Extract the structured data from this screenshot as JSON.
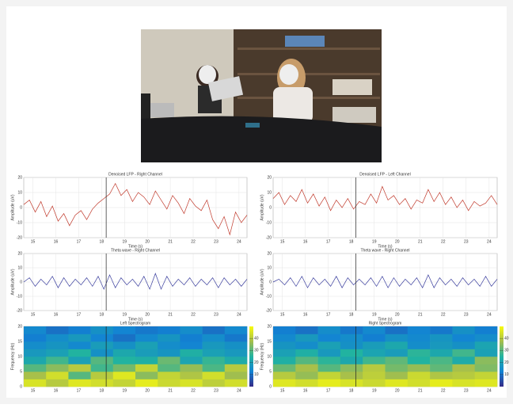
{
  "chart_data": [
    {
      "type": "line",
      "title": "Denoised LFP - Right Channel",
      "xlabel": "Time (s)",
      "ylabel": "Amplitude (uV)",
      "color": "#c0392b",
      "x": [
        14.6,
        14.85,
        15.1,
        15.35,
        15.6,
        15.85,
        16.1,
        16.35,
        16.6,
        16.85,
        17.1,
        17.35,
        17.6,
        17.85,
        18.1,
        18.35,
        18.6,
        18.85,
        19.1,
        19.35,
        19.6,
        19.85,
        20.1,
        20.35,
        20.6,
        20.85,
        21.1,
        21.35,
        21.6,
        21.85,
        22.1,
        22.35,
        22.6,
        22.85,
        23.1,
        23.35,
        23.6,
        23.85,
        24.1,
        24.35
      ],
      "series": [
        {
          "values": [
            2,
            5,
            -3,
            4,
            -6,
            1,
            -9,
            -4,
            -12,
            -5,
            -2,
            -8,
            -1,
            3,
            6,
            9,
            16,
            8,
            12,
            4,
            10,
            7,
            2,
            11,
            5,
            -1,
            8,
            3,
            -4,
            6,
            1,
            -2,
            5,
            -8,
            -14,
            -6,
            -18,
            -3,
            -10,
            -5
          ]
        }
      ],
      "marker_x": 18.2,
      "xlim": [
        14.6,
        24.35
      ],
      "xticks": [
        15,
        16,
        17,
        18,
        19,
        20,
        21,
        22,
        23,
        24
      ],
      "ylim": [
        -20,
        20
      ],
      "yticks": [
        -20,
        -10,
        0,
        10,
        20
      ],
      "grid": true
    },
    {
      "type": "line",
      "title": "Denoised LFP - Left Channel",
      "xlabel": "Time (s)",
      "ylabel": "Amplitude (uV)",
      "color": "#c0392b",
      "x": [
        14.6,
        14.85,
        15.1,
        15.35,
        15.6,
        15.85,
        16.1,
        16.35,
        16.6,
        16.85,
        17.1,
        17.35,
        17.6,
        17.85,
        18.1,
        18.35,
        18.6,
        18.85,
        19.1,
        19.35,
        19.6,
        19.85,
        20.1,
        20.35,
        20.6,
        20.85,
        21.1,
        21.35,
        21.6,
        21.85,
        22.1,
        22.35,
        22.6,
        22.85,
        23.1,
        23.35,
        23.6,
        23.85,
        24.1,
        24.35
      ],
      "series": [
        {
          "values": [
            6,
            10,
            2,
            8,
            4,
            12,
            3,
            9,
            1,
            7,
            -2,
            5,
            0,
            6,
            -1,
            4,
            2,
            9,
            3,
            14,
            5,
            8,
            2,
            6,
            -1,
            5,
            3,
            12,
            4,
            10,
            2,
            7,
            0,
            5,
            -2,
            4,
            1,
            3,
            8,
            2
          ]
        }
      ],
      "marker_x": 18.2,
      "xlim": [
        14.6,
        24.35
      ],
      "xticks": [
        15,
        16,
        17,
        18,
        19,
        20,
        21,
        22,
        23,
        24
      ],
      "ylim": [
        -20,
        20
      ],
      "yticks": [
        -20,
        -10,
        0,
        10,
        20
      ],
      "grid": true
    },
    {
      "type": "line",
      "title": "Theta wave - Right Channel",
      "xlabel": "Time (s)",
      "ylabel": "Amplitude (uV)",
      "color": "#3b3f9e",
      "x": [
        14.6,
        14.85,
        15.1,
        15.35,
        15.6,
        15.85,
        16.1,
        16.35,
        16.6,
        16.85,
        17.1,
        17.35,
        17.6,
        17.85,
        18.1,
        18.35,
        18.6,
        18.85,
        19.1,
        19.35,
        19.6,
        19.85,
        20.1,
        20.35,
        20.6,
        20.85,
        21.1,
        21.35,
        21.6,
        21.85,
        22.1,
        22.35,
        22.6,
        22.85,
        23.1,
        23.35,
        23.6,
        23.85,
        24.1,
        24.35
      ],
      "series": [
        {
          "values": [
            0,
            3,
            -3,
            2,
            -2,
            4,
            -4,
            3,
            -3,
            2,
            -2,
            3,
            -3,
            4,
            -5,
            5,
            -4,
            3,
            -2,
            2,
            -3,
            4,
            -5,
            6,
            -5,
            4,
            -3,
            2,
            -2,
            3,
            -3,
            2,
            -2,
            3,
            -4,
            3,
            -2,
            2,
            -3,
            2
          ]
        }
      ],
      "marker_x": 18.2,
      "xlim": [
        14.6,
        24.35
      ],
      "xticks": [
        15,
        16,
        17,
        18,
        19,
        20,
        21,
        22,
        23,
        24
      ],
      "ylim": [
        -20,
        20
      ],
      "yticks": [
        -20,
        -10,
        0,
        10,
        20
      ],
      "grid": true
    },
    {
      "type": "line",
      "title": "Theta wave - Right Channel",
      "xlabel": "Time (s)",
      "ylabel": "Amplitude (uV)",
      "color": "#3b3f9e",
      "x": [
        14.6,
        14.85,
        15.1,
        15.35,
        15.6,
        15.85,
        16.1,
        16.35,
        16.6,
        16.85,
        17.1,
        17.35,
        17.6,
        17.85,
        18.1,
        18.35,
        18.6,
        18.85,
        19.1,
        19.35,
        19.6,
        19.85,
        20.1,
        20.35,
        20.6,
        20.85,
        21.1,
        21.35,
        21.6,
        21.85,
        22.1,
        22.35,
        22.6,
        22.85,
        23.1,
        23.35,
        23.6,
        23.85,
        24.1,
        24.35
      ],
      "series": [
        {
          "values": [
            0,
            2,
            -2,
            3,
            -3,
            4,
            -4,
            3,
            -2,
            2,
            -3,
            4,
            -4,
            3,
            -2,
            2,
            -2,
            3,
            -3,
            4,
            -4,
            3,
            -3,
            2,
            -2,
            3,
            -4,
            5,
            -4,
            3,
            -2,
            2,
            -3,
            3,
            -2,
            2,
            -3,
            4,
            -3,
            2
          ]
        }
      ],
      "marker_x": 18.2,
      "xlim": [
        14.6,
        24.35
      ],
      "xticks": [
        15,
        16,
        17,
        18,
        19,
        20,
        21,
        22,
        23,
        24
      ],
      "ylim": [
        -20,
        20
      ],
      "yticks": [
        -20,
        -10,
        0,
        10,
        20
      ],
      "grid": true
    },
    {
      "type": "heatmap",
      "title": "Left Spectrogram",
      "ylabel": "Frequency (Hz)",
      "z": [
        [
          45,
          40,
          46,
          44,
          42,
          47,
          43,
          45,
          41,
          44
        ],
        [
          38,
          44,
          30,
          40,
          46,
          35,
          42,
          39,
          44,
          37
        ],
        [
          30,
          35,
          40,
          28,
          33,
          42,
          30,
          36,
          29,
          40
        ],
        [
          22,
          28,
          20,
          30,
          25,
          24,
          32,
          21,
          27,
          23
        ],
        [
          18,
          20,
          25,
          16,
          22,
          19,
          17,
          24,
          20,
          18
        ],
        [
          15,
          17,
          14,
          19,
          16,
          20,
          15,
          13,
          18,
          16
        ],
        [
          12,
          15,
          18,
          13,
          10,
          14,
          17,
          12,
          15,
          11
        ],
        [
          14,
          10,
          12,
          16,
          13,
          11,
          12,
          15,
          10,
          14
        ]
      ],
      "clim": [
        0,
        50
      ],
      "colorbar_ticks": [
        10,
        20,
        30,
        40
      ],
      "marker_x": 18.2,
      "xlim": [
        14.6,
        24.35
      ],
      "xticks": [
        15,
        16,
        17,
        18,
        19,
        20,
        21,
        22,
        23,
        24
      ],
      "ylim": [
        0,
        20
      ],
      "yticks": [
        0,
        5,
        10,
        15,
        20
      ]
    },
    {
      "type": "heatmap",
      "title": "Right Spectrogram",
      "ylabel": "Frequency (Hz)",
      "z": [
        [
          46,
          44,
          47,
          45,
          43,
          46,
          44,
          47,
          45,
          46
        ],
        [
          40,
          36,
          42,
          38,
          41,
          37,
          43,
          39,
          40,
          42
        ],
        [
          32,
          38,
          30,
          35,
          40,
          33,
          36,
          31,
          38,
          34
        ],
        [
          24,
          30,
          26,
          22,
          28,
          31,
          25,
          29,
          23,
          35
        ],
        [
          20,
          24,
          18,
          25,
          21,
          19,
          26,
          22,
          28,
          20
        ],
        [
          17,
          15,
          20,
          16,
          19,
          22,
          15,
          18,
          16,
          21
        ],
        [
          14,
          18,
          13,
          15,
          12,
          16,
          14,
          17,
          13,
          15
        ],
        [
          12,
          10,
          15,
          11,
          14,
          10,
          13,
          11,
          16,
          12
        ]
      ],
      "clim": [
        0,
        50
      ],
      "colorbar_ticks": [
        10,
        20,
        30,
        40
      ],
      "marker_x": 18.2,
      "xlim": [
        14.6,
        24.35
      ],
      "xticks": [
        15,
        16,
        17,
        18,
        19,
        20,
        21,
        22,
        23,
        24
      ],
      "ylim": [
        0,
        20
      ],
      "yticks": [
        0,
        5,
        10,
        15,
        20
      ]
    }
  ]
}
